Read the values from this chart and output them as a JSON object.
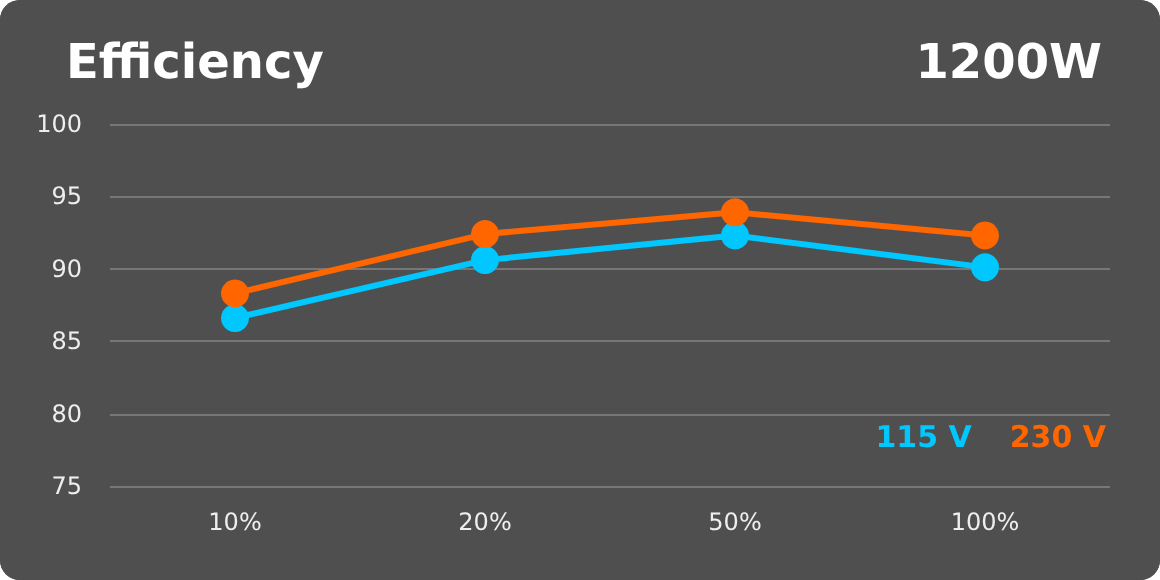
{
  "chart_data": {
    "type": "line",
    "title": "Efficiency",
    "subtitle": "1200W",
    "categories": [
      "10%",
      "20%",
      "50%",
      "100%"
    ],
    "series": [
      {
        "name": "115 V",
        "color": "#00c8ff",
        "values": [
          86.6,
          90.6,
          92.3,
          90.1
        ]
      },
      {
        "name": "230 V",
        "color": "#ff6600",
        "values": [
          88.3,
          92.4,
          93.9,
          92.3
        ]
      }
    ],
    "ylim": [
      75,
      100
    ],
    "yticks": [
      75,
      80,
      85,
      90,
      95,
      100
    ],
    "grid": "y",
    "legend": "bottom right",
    "marker": "circle",
    "line_style": "solid"
  }
}
